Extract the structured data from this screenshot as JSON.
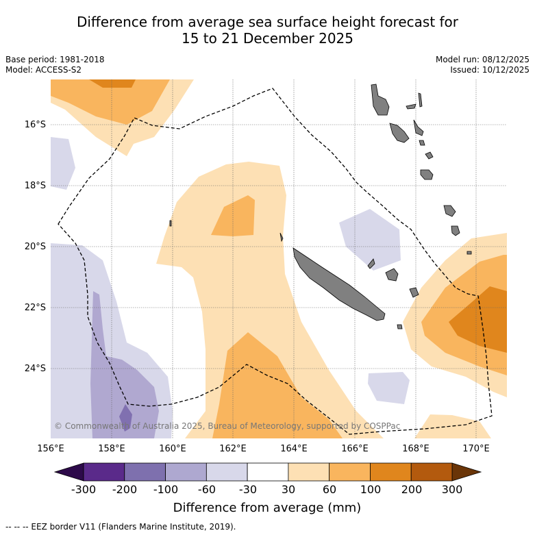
{
  "header": {
    "title_line1": "Difference from average sea surface height forecast for",
    "title_line2": "15 to 21 December 2025"
  },
  "meta": {
    "base_period": "Base period: 1981-2018",
    "model": "Model: ACCESS-S2",
    "model_run": "Model run: 08/12/2025",
    "issued": "Issued: 10/12/2025"
  },
  "map": {
    "lat_labels": [
      "16°S",
      "18°S",
      "20°S",
      "22°S",
      "24°S"
    ],
    "lon_labels": [
      "156°E",
      "158°E",
      "160°E",
      "162°E",
      "164°E",
      "166°E",
      "168°E",
      "170°E"
    ],
    "copyright": "© Commonwealth of Australia 2025, Bureau of Meteorology, supported by COSPPac",
    "colors": {
      "land": "#808080",
      "neg_30_60": "#d8d8ea",
      "neg_60_100": "#b0a8d0",
      "neg_100_200": "#8070b0",
      "pos_30_60": "#fde0b4",
      "pos_60_100": "#f9b55e",
      "pos_100_200": "#e0861d"
    }
  },
  "colorbar": {
    "ticks": [
      "-300",
      "-200",
      "-100",
      "-60",
      "-30",
      "30",
      "60",
      "100",
      "200",
      "300"
    ],
    "colors": [
      "#5a2a8a",
      "#7e70ae",
      "#aea8d0",
      "#d8d8ea",
      "#ffffff",
      "#fde0b4",
      "#f9b55e",
      "#e0861d",
      "#b35a0e"
    ],
    "extend_low_color": "#2d0a4a",
    "extend_high_color": "#6a3508",
    "label": "Difference from average (mm)"
  },
  "footer": {
    "legend_text": "-- -- -- EEZ border V11 (Flanders Marine Institute, 2019)."
  }
}
